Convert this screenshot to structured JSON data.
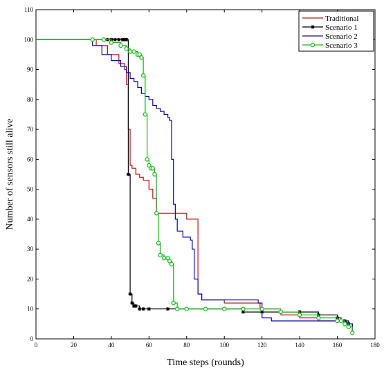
{
  "chart_data": {
    "type": "line",
    "xlabel": "Time steps (rounds)",
    "ylabel": "Number of sensors still alive",
    "xlim": [
      0,
      180
    ],
    "ylim": [
      0,
      110
    ],
    "xticks": [
      "0",
      "20",
      "40",
      "60",
      "80",
      "100",
      "120",
      "140",
      "160",
      "180"
    ],
    "yticks": [
      "0",
      "10",
      "20",
      "30",
      "40",
      "50",
      "60",
      "70",
      "80",
      "90",
      "100",
      "110"
    ],
    "grid": false,
    "legend_position": "top-right",
    "series": [
      {
        "name": "Traditional",
        "color": "#ff0000",
        "marker": "none",
        "x": [
          0,
          25,
          32,
          38,
          44,
          47,
          48,
          49,
          50,
          51,
          53,
          55,
          57,
          60,
          62,
          64,
          67,
          70,
          75,
          80,
          85,
          86,
          88,
          92,
          95,
          100,
          110,
          118,
          119,
          125,
          130,
          135,
          140,
          150,
          160,
          165,
          168
        ],
        "y": [
          100,
          100,
          98,
          95,
          92,
          90,
          85,
          70,
          58,
          57,
          55,
          54,
          53,
          50,
          47,
          42,
          42,
          42,
          42,
          40,
          40,
          15,
          13,
          13,
          13,
          12,
          12,
          12,
          10,
          10,
          8,
          8,
          7,
          6,
          6,
          5,
          2
        ]
      },
      {
        "name": "Scenario 1",
        "color": "#000000",
        "marker": "star",
        "x": [
          0,
          38,
          40,
          42,
          44,
          46,
          47,
          48,
          49,
          50,
          51,
          52,
          53,
          55,
          57,
          60,
          70,
          80,
          90,
          100,
          110,
          120,
          130,
          140,
          150,
          160,
          162,
          164,
          166,
          168
        ],
        "y": [
          100,
          100,
          100,
          100,
          100,
          100,
          100,
          100,
          55,
          15,
          12,
          11,
          11,
          10,
          10,
          10,
          10,
          10,
          10,
          10,
          9,
          9,
          9,
          9,
          8,
          7,
          6,
          6,
          5,
          2
        ]
      },
      {
        "name": "Scenario 2",
        "color": "#0000ff",
        "marker": "none",
        "x": [
          0,
          25,
          30,
          35,
          40,
          45,
          48,
          50,
          52,
          54,
          56,
          58,
          60,
          62,
          64,
          66,
          68,
          70,
          71,
          72,
          73,
          74,
          75,
          78,
          80,
          82,
          83,
          84,
          86,
          88,
          90,
          95,
          100,
          110,
          118,
          120,
          125,
          130,
          140,
          150,
          160,
          165,
          168
        ],
        "y": [
          100,
          100,
          98,
          95,
          93,
          91,
          89,
          87,
          86,
          84,
          82,
          81,
          80,
          78,
          77,
          76,
          75,
          74,
          73,
          60,
          45,
          40,
          36,
          34,
          34,
          33,
          30,
          20,
          15,
          13,
          13,
          13,
          13,
          13,
          12,
          7,
          6,
          6,
          6,
          6,
          6,
          5,
          2
        ]
      },
      {
        "name": "Scenario 3",
        "color": "#00cc00",
        "marker": "circle",
        "x": [
          0,
          30,
          36,
          40,
          45,
          48,
          50,
          52,
          54,
          55,
          56,
          57,
          58,
          59,
          60,
          61,
          62,
          63,
          64,
          65,
          66,
          68,
          70,
          71,
          72,
          73,
          75,
          80,
          90,
          100,
          110,
          120,
          130,
          140,
          150,
          160,
          162,
          164,
          166,
          168
        ],
        "y": [
          100,
          100,
          100,
          99,
          98,
          97,
          96,
          96,
          95,
          95,
          94,
          88,
          75,
          60,
          58,
          57,
          57,
          55,
          42,
          32,
          28,
          27,
          27,
          26,
          25,
          12,
          10,
          10,
          10,
          10,
          10,
          10,
          9,
          8,
          7,
          6,
          6,
          5,
          4,
          2
        ]
      }
    ]
  }
}
